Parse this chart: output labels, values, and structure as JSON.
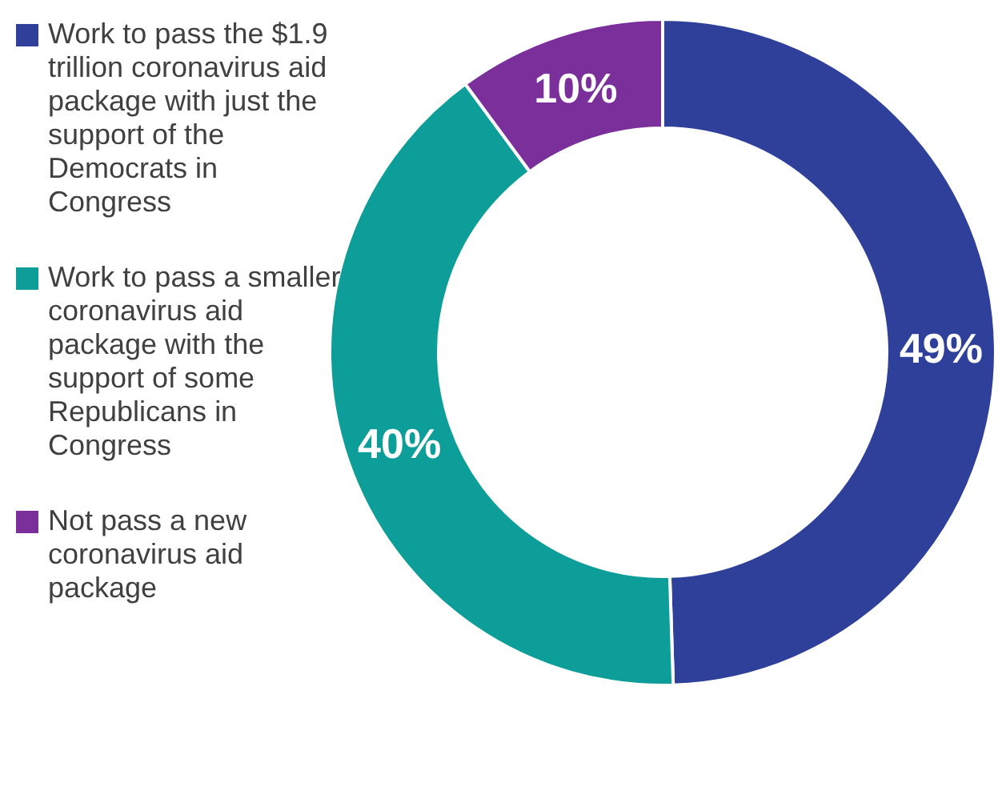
{
  "chart_data": {
    "type": "donut",
    "categories": [
      "Work to pass the $1.9 trillion coronavirus aid package with just the support of the Democrats in Congress",
      "Work to pass a smaller coronavirus aid package with the support of some Republicans in Congress",
      "Not pass a new coronavirus aid package"
    ],
    "values": [
      49,
      40,
      10
    ],
    "colors": [
      "#2e4099",
      "#0e9e99",
      "#7b2f9b"
    ],
    "value_labels": [
      "49%",
      "40%",
      "10%"
    ],
    "legend": "left"
  }
}
